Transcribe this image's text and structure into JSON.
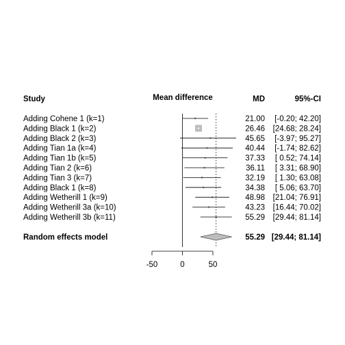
{
  "chart_data": {
    "type": "forest",
    "header": {
      "study": "Study",
      "effect": "Mean difference",
      "md": "MD",
      "ci": "95%-CI"
    },
    "studies": [
      {
        "label": "Adding Cohene 1 (k=1)",
        "md": 21.0,
        "lower": -0.2,
        "upper": 42.2,
        "md_text": "21.00",
        "ci_text": "[-0.20; 42.20]"
      },
      {
        "label": "Adding Black 1 (k=2)",
        "md": 26.46,
        "lower": 24.68,
        "upper": 28.24,
        "md_text": "26.46",
        "ci_text": "[24.68; 28.24]"
      },
      {
        "label": "Adding Black 2 (k=3)",
        "md": 45.65,
        "lower": -3.97,
        "upper": 95.27,
        "md_text": "45.65",
        "ci_text": "[-3.97; 95.27]"
      },
      {
        "label": "Adding Tian 1a (k=4)",
        "md": 40.44,
        "lower": -1.74,
        "upper": 82.62,
        "md_text": "40.44",
        "ci_text": "[-1.74; 82.62]"
      },
      {
        "label": "Adding Tian 1b (k=5)",
        "md": 37.33,
        "lower": 0.52,
        "upper": 74.14,
        "md_text": "37.33",
        "ci_text": "[ 0.52; 74.14]"
      },
      {
        "label": "Adding Tian 2 (k=6)",
        "md": 36.11,
        "lower": 3.31,
        "upper": 68.9,
        "md_text": "36.11",
        "ci_text": "[ 3.31; 68.90]"
      },
      {
        "label": "Adding Tian 3 (k=7)",
        "md": 32.19,
        "lower": 1.3,
        "upper": 63.08,
        "md_text": "32.19",
        "ci_text": "[ 1.30; 63.08]"
      },
      {
        "label": "Adding Black 1 (k=8)",
        "md": 34.38,
        "lower": 5.06,
        "upper": 63.7,
        "md_text": "34.38",
        "ci_text": "[ 5.06; 63.70]"
      },
      {
        "label": "Adding Wetherill 1 (k=9)",
        "md": 48.98,
        "lower": 21.04,
        "upper": 76.91,
        "md_text": "48.98",
        "ci_text": "[21.04; 76.91]"
      },
      {
        "label": "Adding Wetherill 3a (k=10)",
        "md": 43.23,
        "lower": 16.44,
        "upper": 70.02,
        "md_text": "43.23",
        "ci_text": "[16.44; 70.02]"
      },
      {
        "label": "Adding Wetherill 3b (k=11)",
        "md": 55.29,
        "lower": 29.44,
        "upper": 81.14,
        "md_text": "55.29",
        "ci_text": "[29.44; 81.14]"
      }
    ],
    "pooled": {
      "label": "Random effects model",
      "md": 55.29,
      "lower": 29.44,
      "upper": 81.14,
      "md_text": "55.29",
      "ci_text": "[29.44; 81.14]"
    },
    "x_ticks": [
      -50,
      0,
      50
    ],
    "x_tick_labels": [
      "-50",
      "0",
      "50"
    ],
    "xlim": [
      -50,
      50
    ],
    "null_line": 0,
    "reference_line": 55.29,
    "colors": {
      "line": "#000000",
      "box": "#bdbdbd",
      "diamond": "#bdbdbd",
      "diamond_border": "#555555"
    }
  }
}
